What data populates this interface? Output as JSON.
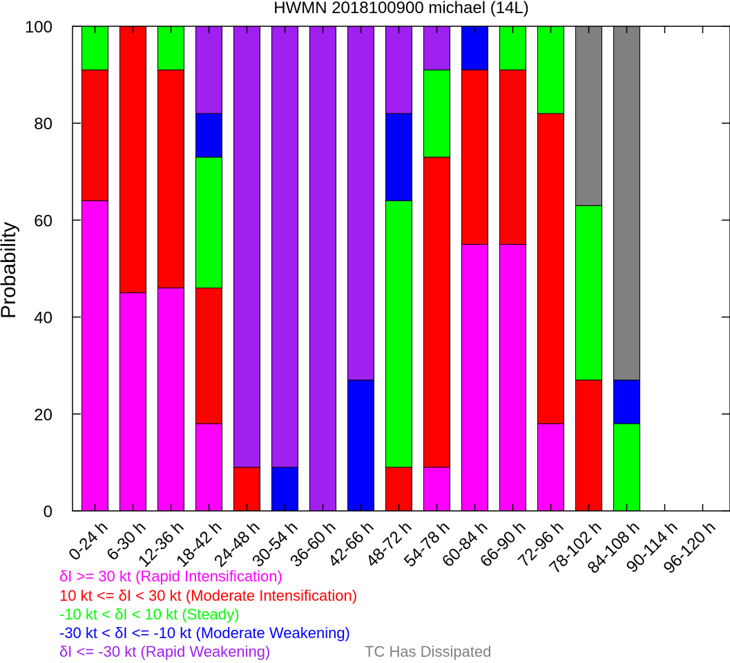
{
  "chart_data": {
    "type": "bar",
    "stacked": true,
    "title": "HWMN 2018100900 michael (14L)",
    "xlabel": "",
    "ylabel": "Probability",
    "ylim": [
      0,
      100
    ],
    "yticks": [
      0,
      20,
      40,
      60,
      80,
      100
    ],
    "categories": [
      "0-24 h",
      "6-30 h",
      "12-36 h",
      "18-42 h",
      "24-48 h",
      "30-54 h",
      "36-60 h",
      "42-66 h",
      "48-72 h",
      "54-78 h",
      "60-84 h",
      "66-90 h",
      "72-96 h",
      "78-102 h",
      "84-108 h",
      "90-114 h",
      "96-120 h"
    ],
    "series": [
      {
        "name": "δI >= 30 kt (Rapid Intensification)",
        "color": "#ff00ff",
        "values": [
          64,
          45,
          46,
          18,
          0,
          0,
          0,
          0,
          0,
          9,
          55,
          55,
          18,
          0,
          0,
          0,
          0
        ]
      },
      {
        "name": "10 kt <= δI < 30 kt (Moderate Intensification)",
        "color": "#ff0000",
        "values": [
          27,
          55,
          45,
          28,
          9,
          0,
          0,
          0,
          9,
          64,
          36,
          36,
          64,
          27,
          0,
          0,
          0
        ]
      },
      {
        "name": "-10 kt < δI < 10 kt (Steady)",
        "color": "#00ff00",
        "values": [
          9,
          0,
          9,
          27,
          0,
          0,
          0,
          0,
          55,
          18,
          0,
          9,
          18,
          36,
          18,
          0,
          0
        ]
      },
      {
        "name": "-30 kt < δI <= -10 kt (Moderate Weakening)",
        "color": "#0000ff",
        "values": [
          0,
          0,
          0,
          9,
          0,
          9,
          0,
          27,
          18,
          0,
          9,
          0,
          0,
          0,
          9,
          0,
          0
        ]
      },
      {
        "name": "δI <= -30 kt (Rapid Weakening)",
        "color": "#a020f0",
        "values": [
          0,
          0,
          0,
          18,
          91,
          91,
          100,
          73,
          18,
          9,
          0,
          0,
          0,
          0,
          0,
          0,
          0
        ]
      },
      {
        "name": "TC Has Dissipated",
        "color": "#808080",
        "values": [
          0,
          0,
          0,
          0,
          0,
          0,
          0,
          0,
          0,
          0,
          0,
          0,
          0,
          37,
          73,
          0,
          0
        ]
      }
    ],
    "legend_placement": "bottom",
    "grid": false
  }
}
